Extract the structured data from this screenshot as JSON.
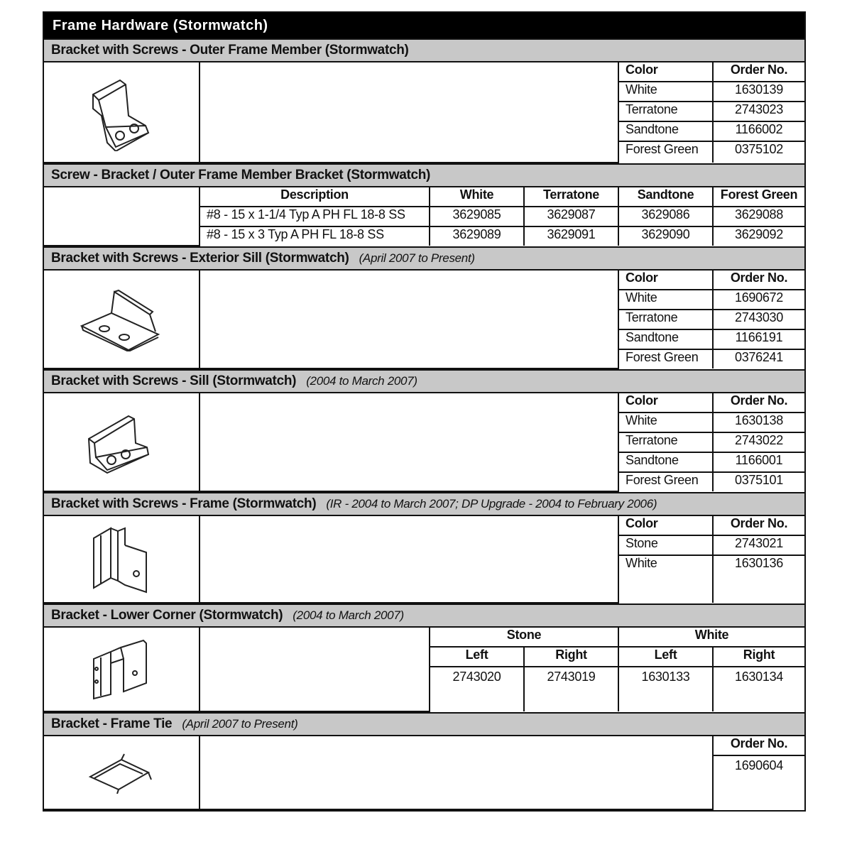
{
  "title": "Frame Hardware (Stormwatch)",
  "sections": [
    {
      "title": "Bracket with Screws - Outer Frame Member (Stormwatch)",
      "image_icon": "outer-frame-bracket-drawing",
      "headers": [
        "Color",
        "Order No."
      ],
      "rows": [
        {
          "color": "White",
          "order": "1630139"
        },
        {
          "color": "Terratone",
          "order": "2743023"
        },
        {
          "color": "Sandtone",
          "order": "1166002"
        },
        {
          "color": "Forest Green",
          "order": "0375102"
        }
      ]
    },
    {
      "title": "Screw - Bracket / Outer Frame Member Bracket (Stormwatch)",
      "headers": [
        "Description",
        "White",
        "Terratone",
        "Sandtone",
        "Forest Green"
      ],
      "rows": [
        [
          "#8 - 15 x 1-1/4 Typ A PH FL 18-8 SS",
          "3629085",
          "3629087",
          "3629086",
          "3629088"
        ],
        [
          "#8 - 15 x 3 Typ A PH FL 18-8 SS",
          "3629089",
          "3629091",
          "3629090",
          "3629092"
        ]
      ]
    },
    {
      "title": "Bracket with Screws - Exterior Sill (Stormwatch)",
      "note": "(April 2007 to Present)",
      "image_icon": "exterior-sill-bracket-drawing",
      "headers": [
        "Color",
        "Order No."
      ],
      "rows": [
        {
          "color": "White",
          "order": "1690672"
        },
        {
          "color": "Terratone",
          "order": "2743030"
        },
        {
          "color": "Sandtone",
          "order": "1166191"
        },
        {
          "color": "Forest Green",
          "order": "0376241"
        }
      ]
    },
    {
      "title": "Bracket with Screws - Sill (Stormwatch)",
      "note": "(2004 to March 2007)",
      "image_icon": "sill-bracket-drawing",
      "headers": [
        "Color",
        "Order No."
      ],
      "rows": [
        {
          "color": "White",
          "order": "1630138"
        },
        {
          "color": "Terratone",
          "order": "2743022"
        },
        {
          "color": "Sandtone",
          "order": "1166001"
        },
        {
          "color": "Forest Green",
          "order": "0375101"
        }
      ]
    },
    {
      "title": "Bracket with Screws - Frame (Stormwatch)",
      "note": "(IR - 2004 to March 2007; DP Upgrade - 2004 to February 2006)",
      "image_icon": "frame-bracket-drawing",
      "headers": [
        "Color",
        "Order No."
      ],
      "rows": [
        {
          "color": "Stone",
          "order": "2743021"
        },
        {
          "color": "White",
          "order": "1630136"
        }
      ]
    },
    {
      "title": "Bracket - Lower Corner  (Stormwatch)",
      "note": "(2004 to March 2007)",
      "image_icon": "lower-corner-bracket-drawing",
      "groups": [
        "Stone",
        "White"
      ],
      "subheaders": [
        "Left",
        "Right",
        "Left",
        "Right"
      ],
      "values": [
        "2743020",
        "2743019",
        "1630133",
        "1630134"
      ]
    },
    {
      "title": "Bracket - Frame Tie",
      "note": "(April 2007 to Present)",
      "image_icon": "frame-tie-bracket-drawing",
      "headers": [
        "Order No."
      ],
      "values": [
        "1690604"
      ]
    }
  ]
}
